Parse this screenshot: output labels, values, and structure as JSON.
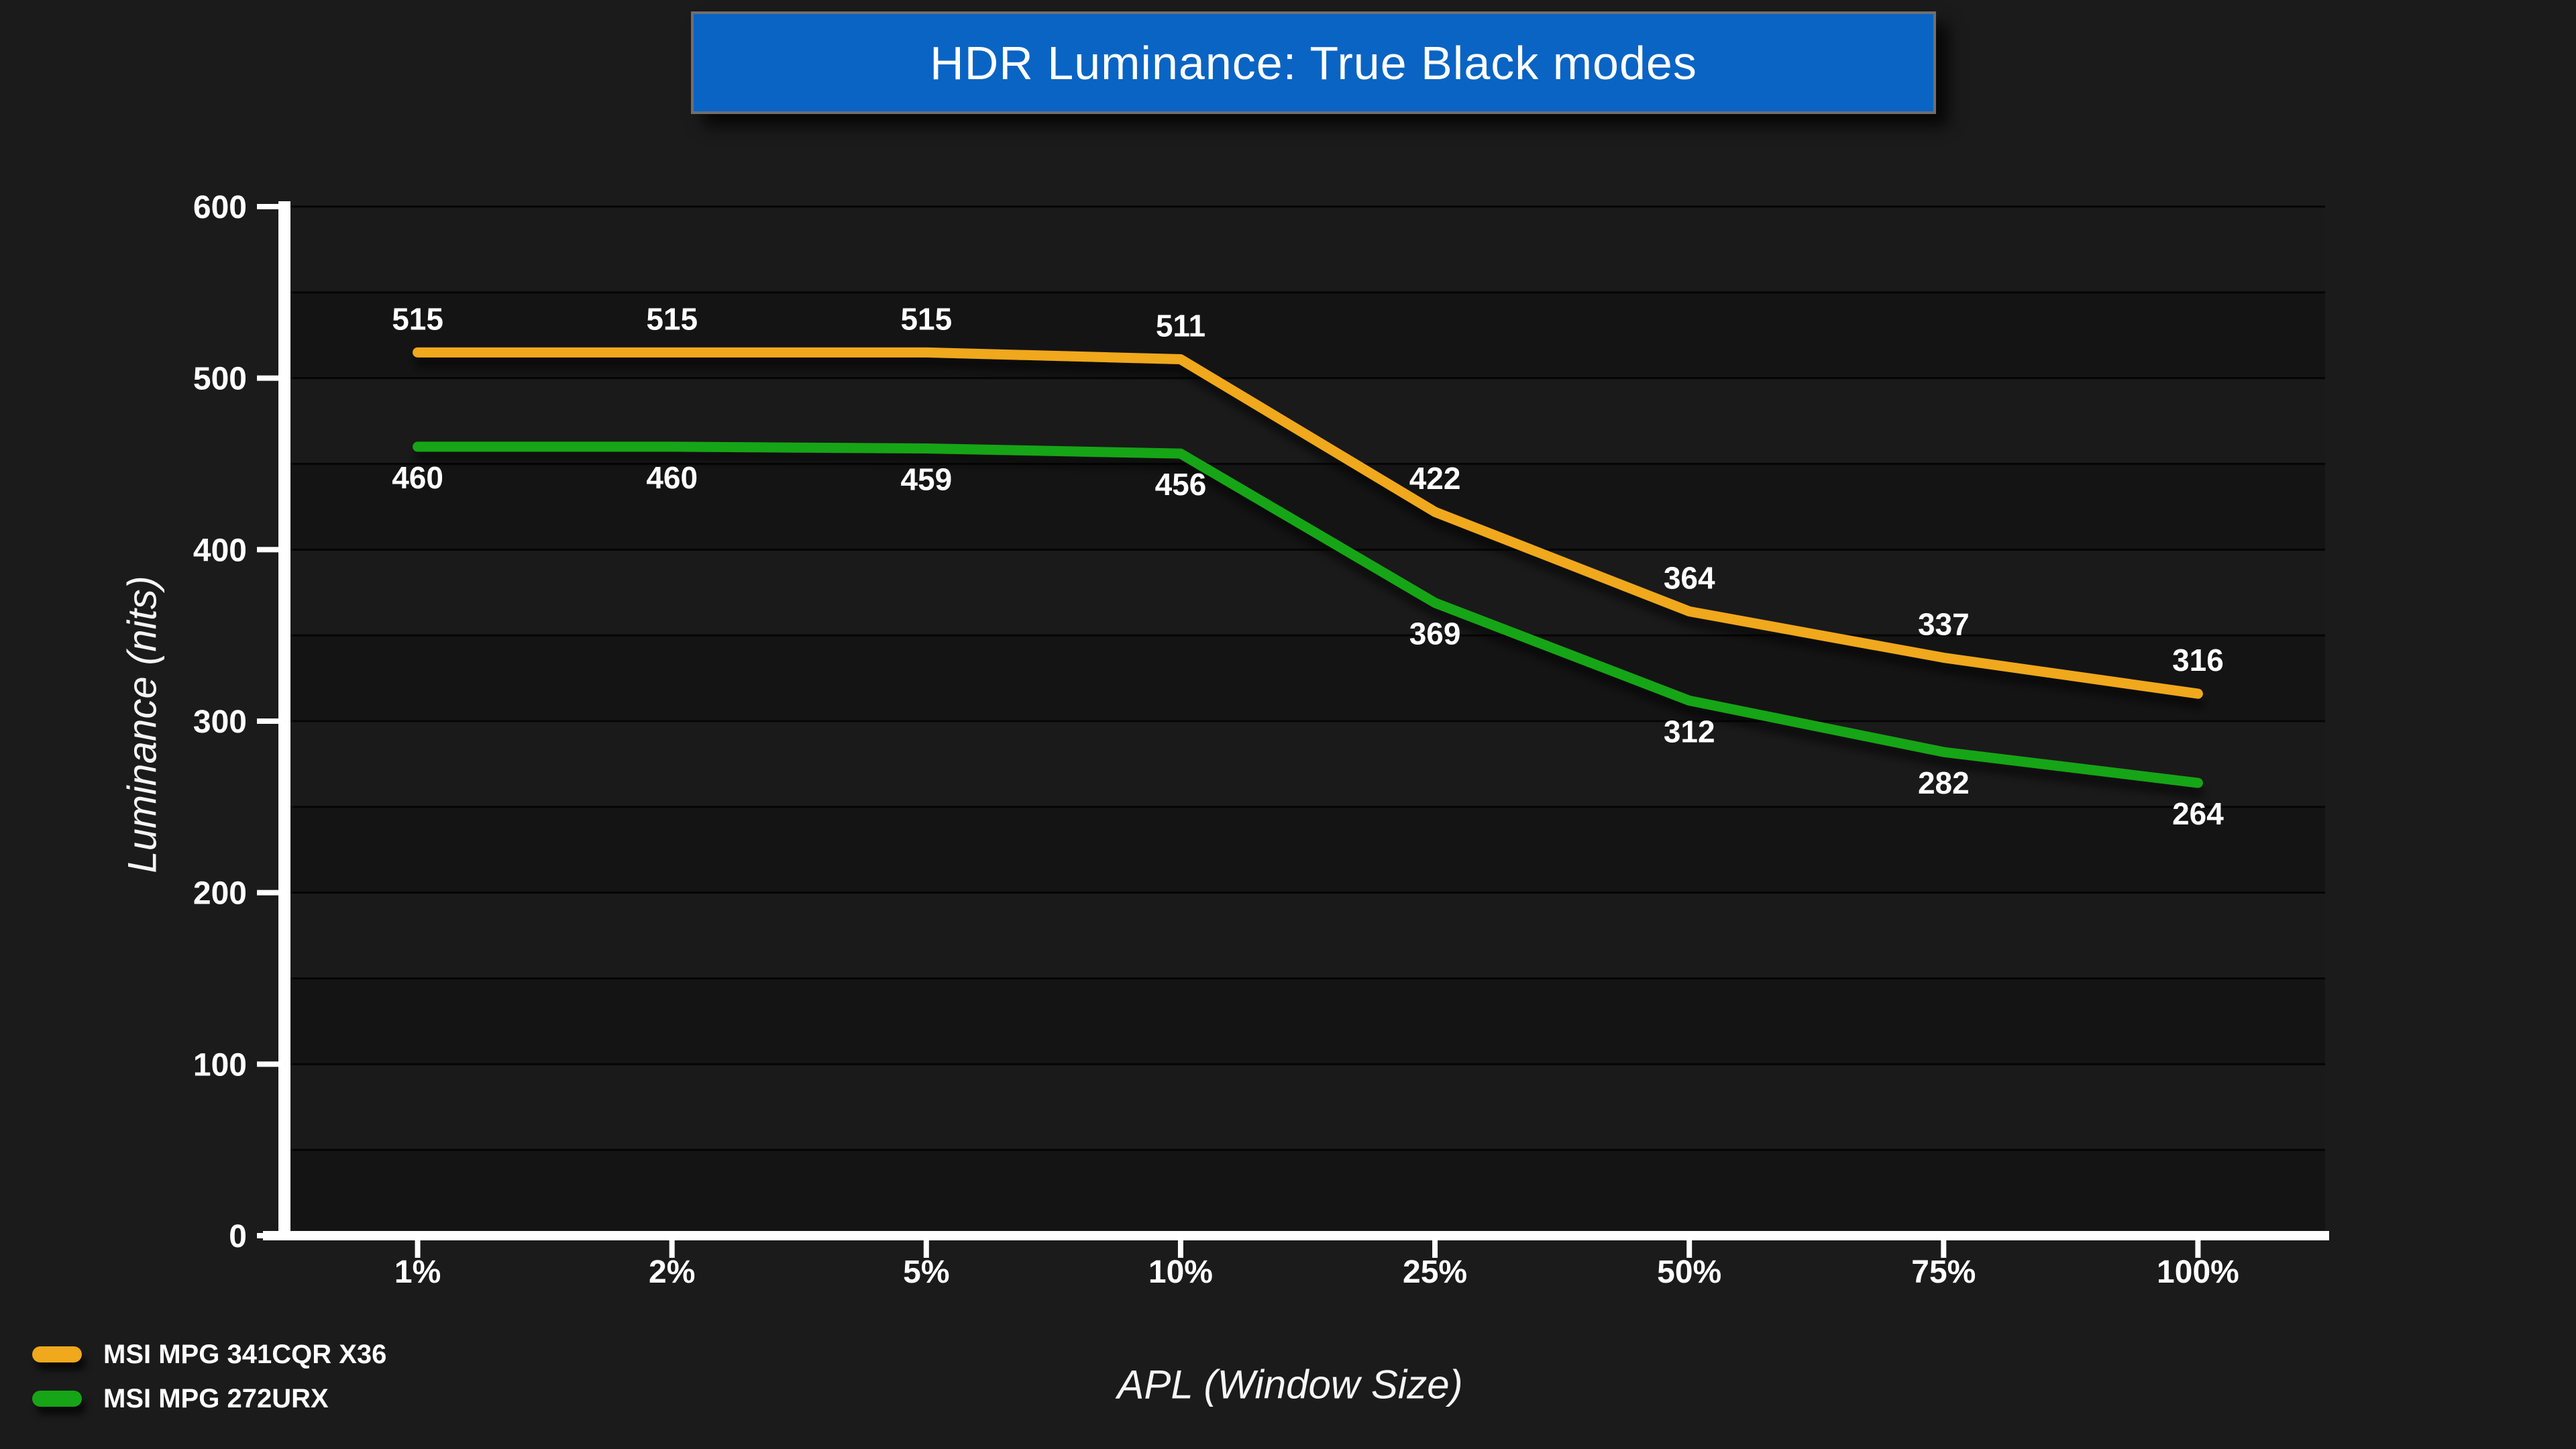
{
  "title_banner": {
    "text": "HDR Luminance: True Black modes",
    "background_color": "#0a64c4",
    "border_color": "#6f6f6f"
  },
  "chart_data": {
    "type": "line",
    "title": "HDR Luminance: True Black modes",
    "xlabel": "APL (Window Size)",
    "ylabel": "Luminance (nits)",
    "categories": [
      "1%",
      "2%",
      "5%",
      "10%",
      "25%",
      "50%",
      "75%",
      "100%"
    ],
    "series": [
      {
        "name": "MSI MPG 341CQR X36",
        "color": "#f0a81c",
        "values": [
          515,
          515,
          515,
          511,
          422,
          364,
          337,
          316
        ],
        "label_position": "above"
      },
      {
        "name": "MSI MPG 272URX",
        "color": "#16a516",
        "values": [
          460,
          460,
          459,
          456,
          369,
          312,
          282,
          264
        ],
        "label_position": "below"
      }
    ],
    "ylim": [
      0,
      600
    ],
    "y_ticks": [
      0,
      100,
      200,
      300,
      400,
      500,
      600
    ],
    "gridline_step": 50,
    "grid": "horizontal",
    "legend_position": "bottom-left"
  },
  "style_colors": {
    "page_background": "#1b1b1b",
    "band_dark": "#141414",
    "band_light": "#1a1a1a",
    "gridline": "#050505",
    "axis": "#ffffff",
    "tick_label": "#ffffff",
    "data_label": "#ffffff"
  }
}
